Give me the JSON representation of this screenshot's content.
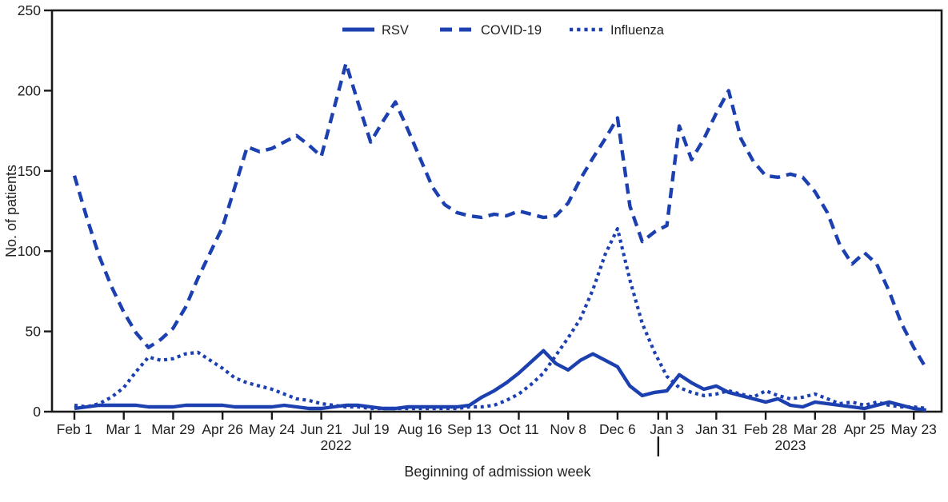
{
  "figure": {
    "y_axis_title": "No. of patients",
    "x_axis_title": "Beginning of admission week",
    "year_labels": [
      "2022",
      "2023"
    ]
  },
  "legend": [
    {
      "label": "RSV",
      "style": "solid"
    },
    {
      "label": "COVID-19",
      "style": "dashed"
    },
    {
      "label": "Influenza",
      "style": "dotted"
    }
  ],
  "colors": {
    "line_blue": "#1c40b0",
    "axis_black": "#1a1a1a",
    "text_black": "#1f1f1f"
  },
  "chart_data": {
    "type": "line",
    "title": "",
    "xlabel": "Beginning of admission week",
    "ylabel": "No. of patients",
    "ylim": [
      0,
      250
    ],
    "y_ticks": [
      0,
      50,
      100,
      150,
      200,
      250
    ],
    "grid": false,
    "legend_position": "top-center",
    "x_unit": "weekly admission weeks, Feb 1 2022 through May 2023",
    "x_tick_labels": [
      "Feb 1",
      "Mar 1",
      "Mar 29",
      "Apr 26",
      "May 24",
      "Jun 21",
      "Jul 19",
      "Aug 16",
      "Sep 13",
      "Oct 11",
      "Nov 8",
      "Dec 6",
      "Jan 3",
      "Jan 31",
      "Feb 28",
      "Mar 28",
      "Apr 25",
      "May 23"
    ],
    "x_tick_weeks": [
      0,
      4,
      8,
      12,
      16,
      20,
      24,
      28,
      32,
      36,
      40,
      44,
      48,
      52,
      56,
      60,
      64,
      68
    ],
    "year_divider_week": 47.3,
    "series": [
      {
        "name": "RSV",
        "dash": "solid",
        "values": [
          2,
          3,
          4,
          4,
          4,
          4,
          3,
          3,
          3,
          4,
          4,
          4,
          4,
          3,
          3,
          3,
          3,
          4,
          3,
          2,
          2,
          3,
          4,
          4,
          3,
          2,
          2,
          3,
          3,
          3,
          3,
          3,
          4,
          9,
          13,
          18,
          24,
          31,
          38,
          30,
          26,
          32,
          36,
          32,
          28,
          16,
          10,
          12,
          13,
          23,
          18,
          14,
          16,
          12,
          10,
          8,
          6,
          8,
          4,
          3,
          6,
          5,
          4,
          3,
          2,
          4,
          6,
          4,
          2,
          1
        ]
      },
      {
        "name": "COVID-19",
        "dash": "dashed",
        "values": [
          147,
          121,
          97,
          78,
          62,
          49,
          40,
          45,
          52,
          65,
          83,
          99,
          115,
          140,
          165,
          162,
          164,
          168,
          172,
          166,
          159,
          188,
          217,
          192,
          168,
          181,
          193,
          176,
          158,
          140,
          129,
          124,
          122,
          121,
          123,
          122,
          125,
          123,
          121,
          122,
          130,
          145,
          158,
          170,
          183,
          128,
          106,
          112,
          116,
          178,
          157,
          170,
          186,
          200,
          170,
          156,
          147,
          146,
          148,
          146,
          137,
          124,
          104,
          92,
          99,
          92,
          75,
          55,
          40,
          27
        ]
      },
      {
        "name": "Influenza",
        "dash": "dotted",
        "values": [
          4,
          3,
          5,
          9,
          15,
          25,
          34,
          32,
          33,
          36,
          37,
          32,
          27,
          21,
          18,
          16,
          14,
          11,
          8,
          7,
          5,
          4,
          3,
          3,
          2,
          2,
          2,
          2,
          2,
          2,
          2,
          2,
          3,
          3,
          4,
          7,
          11,
          17,
          24,
          35,
          46,
          58,
          76,
          98,
          114,
          82,
          55,
          37,
          22,
          15,
          12,
          10,
          11,
          13,
          11,
          9,
          13,
          10,
          8,
          9,
          11,
          8,
          5,
          6,
          4,
          6,
          4,
          3,
          3,
          2
        ]
      }
    ]
  }
}
